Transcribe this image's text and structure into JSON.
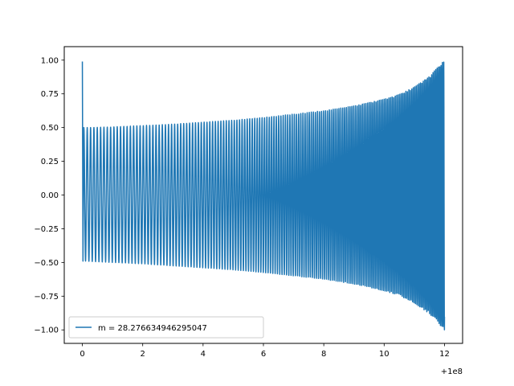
{
  "chart_data": {
    "type": "line",
    "title": "",
    "xlabel": "",
    "ylabel": "",
    "x_offset_label": "+1e8",
    "xlim": [
      -0.6,
      12.6
    ],
    "ylim": [
      -1.1,
      1.1
    ],
    "x_ticks": [
      {
        "value": 0,
        "label": "0"
      },
      {
        "value": 2,
        "label": "2"
      },
      {
        "value": 4,
        "label": "4"
      },
      {
        "value": 6,
        "label": "6"
      },
      {
        "value": 8,
        "label": "8"
      },
      {
        "value": 10,
        "label": "10"
      },
      {
        "value": 12,
        "label": "12"
      }
    ],
    "y_ticks": [
      {
        "value": 1.0,
        "label": "1.00"
      },
      {
        "value": 0.75,
        "label": "0.75"
      },
      {
        "value": 0.5,
        "label": "0.50"
      },
      {
        "value": 0.25,
        "label": "0.25"
      },
      {
        "value": 0.0,
        "label": "0.00"
      },
      {
        "value": -0.25,
        "label": "−0.25"
      },
      {
        "value": -0.5,
        "label": "−0.50"
      },
      {
        "value": -0.75,
        "label": "−0.75"
      },
      {
        "value": -1.0,
        "label": "−1.00"
      }
    ],
    "grid": false,
    "legend_position": "lower-left",
    "series": [
      {
        "name": "m = 28.276634946295047",
        "color": "#1f77b4",
        "envelope": {
          "x": [
            0,
            0.05,
            1,
            2,
            3,
            4,
            5,
            6,
            7,
            8,
            9,
            10,
            10.5,
            11,
            11.5,
            12
          ],
          "upper": [
            0.99,
            0.5,
            0.505,
            0.515,
            0.525,
            0.54,
            0.555,
            0.575,
            0.6,
            0.625,
            0.66,
            0.71,
            0.745,
            0.8,
            0.88,
            1.0
          ],
          "lower": [
            -0.49,
            -0.49,
            -0.5,
            -0.51,
            -0.525,
            -0.54,
            -0.555,
            -0.575,
            -0.6,
            -0.625,
            -0.66,
            -0.71,
            -0.745,
            -0.8,
            -0.88,
            -1.0
          ]
        }
      }
    ]
  }
}
